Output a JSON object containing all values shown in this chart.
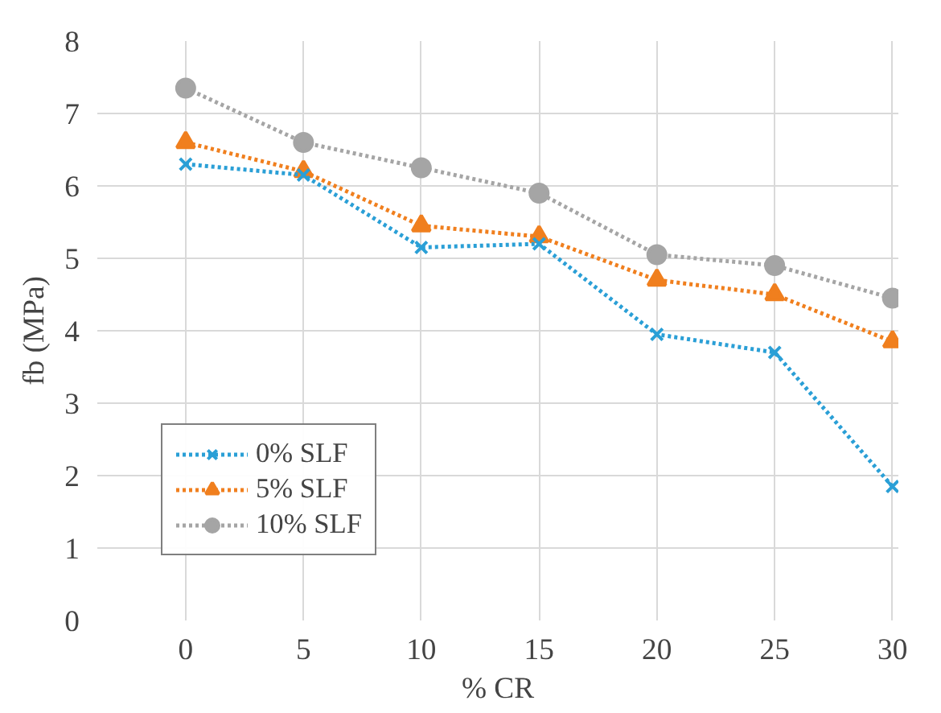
{
  "chart_data": {
    "type": "line",
    "xlabel": "% CR",
    "ylabel": "fb (MPa)",
    "categories": [
      "0",
      "5",
      "10",
      "15",
      "20",
      "25",
      "30"
    ],
    "ylim": [
      0,
      8
    ],
    "yticks": [
      0,
      1,
      2,
      3,
      4,
      5,
      6,
      7,
      8
    ],
    "grid": true,
    "legend": "bottom left",
    "line_style": "dotted",
    "series": [
      {
        "name": "0% SLF",
        "color": "#2a9fd6",
        "marker": "cross",
        "values": [
          6.3,
          6.15,
          5.15,
          5.2,
          3.95,
          3.7,
          1.85
        ]
      },
      {
        "name": "5% SLF",
        "color": "#f07f1e",
        "marker": "triangle",
        "values": [
          6.6,
          6.2,
          5.45,
          5.3,
          4.7,
          4.5,
          3.85
        ]
      },
      {
        "name": "10% SLF",
        "color": "#a5a5a5",
        "marker": "circle",
        "values": [
          7.35,
          6.6,
          6.25,
          5.9,
          5.05,
          4.9,
          4.45
        ]
      }
    ]
  }
}
